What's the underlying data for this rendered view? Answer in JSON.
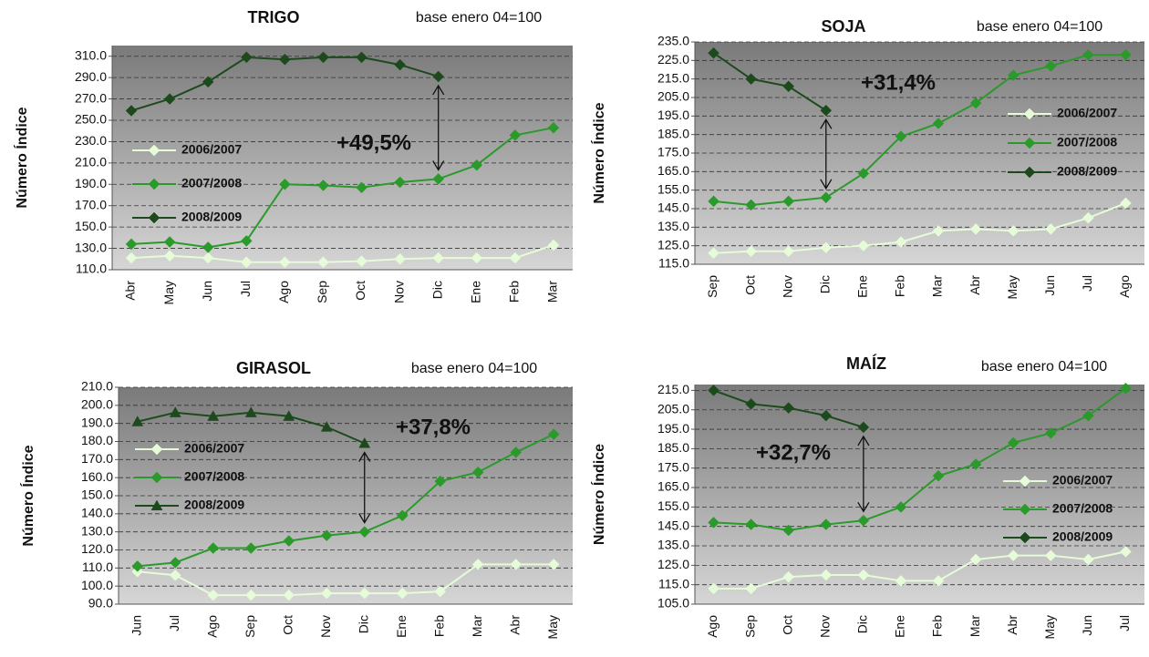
{
  "chart_data": [
    {
      "type": "line",
      "title": "TRIGO",
      "note": "base enero 04=100",
      "ylabel": "Número Índice",
      "annotation": "+49,5%",
      "categories": [
        "Abr",
        "May",
        "Jun",
        "Jul",
        "Ago",
        "Sep",
        "Oct",
        "Nov",
        "Dic",
        "Ene",
        "Feb",
        "Mar"
      ],
      "series": [
        {
          "name": "2006/2007",
          "color": "#e6fbd8",
          "marker": "diamond",
          "values": [
            121,
            123,
            121,
            117,
            117,
            117,
            118,
            120,
            121,
            121,
            121,
            133
          ]
        },
        {
          "name": "2007/2008",
          "color": "#2a9a2a",
          "marker": "diamond",
          "values": [
            134,
            136,
            131,
            137,
            190,
            189,
            187,
            192,
            195,
            208,
            236,
            243
          ]
        },
        {
          "name": "2008/2009",
          "color": "#1d4a1d",
          "marker": "diamond",
          "values": [
            259,
            270,
            286,
            309,
            307,
            309,
            309,
            302,
            291,
            null,
            null,
            null
          ]
        }
      ],
      "ylim": [
        110,
        320
      ],
      "yticks": [
        {
          "value": 110,
          "label": "110.0"
        },
        {
          "value": 130,
          "label": "130.0"
        },
        {
          "value": 150,
          "label": "150.0"
        },
        {
          "value": 170,
          "label": "170.0"
        },
        {
          "value": 190,
          "label": "190.0"
        },
        {
          "value": 210,
          "label": "210.0"
        },
        {
          "value": 230,
          "label": "230.0"
        },
        {
          "value": 250,
          "label": "250.0"
        },
        {
          "value": 270,
          "label": "270.0"
        },
        {
          "value": 290,
          "label": "290.0"
        },
        {
          "value": 310,
          "label": "310.0"
        }
      ],
      "grid": true
    },
    {
      "type": "line",
      "title": "SOJA",
      "note": "base enero 04=100",
      "ylabel": "Número Índice",
      "annotation": "+31,4%",
      "categories": [
        "Sep",
        "Oct",
        "Nov",
        "Dic",
        "Ene",
        "Feb",
        "Mar",
        "Abr",
        "May",
        "Jun",
        "Jul",
        "Ago"
      ],
      "series": [
        {
          "name": "2006/2007",
          "color": "#e6fbd8",
          "marker": "diamond",
          "values": [
            121,
            122,
            122,
            124,
            125,
            127,
            133,
            134,
            133,
            134,
            140,
            148
          ]
        },
        {
          "name": "2007/2008",
          "color": "#2a9a2a",
          "marker": "diamond",
          "values": [
            149,
            147,
            149,
            151,
            164,
            184,
            191,
            202,
            217,
            222,
            228,
            228
          ]
        },
        {
          "name": "2008/2009",
          "color": "#1d4a1d",
          "marker": "diamond",
          "values": [
            229,
            215,
            211,
            198,
            null,
            null,
            null,
            null,
            null,
            null,
            null,
            null
          ]
        }
      ],
      "ylim": [
        115,
        235
      ],
      "yticks": [
        {
          "value": 115,
          "label": "115.0"
        },
        {
          "value": 125,
          "label": "125.0"
        },
        {
          "value": 135,
          "label": "135.0"
        },
        {
          "value": 145,
          "label": "145.0"
        },
        {
          "value": 155,
          "label": "155.0"
        },
        {
          "value": 165,
          "label": "165.0"
        },
        {
          "value": 175,
          "label": "175.0"
        },
        {
          "value": 185,
          "label": "185.0"
        },
        {
          "value": 195,
          "label": "195.0"
        },
        {
          "value": 205,
          "label": "205.0"
        },
        {
          "value": 215,
          "label": "215.0"
        },
        {
          "value": 225,
          "label": "225.0"
        },
        {
          "value": 235,
          "label": "235.0"
        }
      ],
      "grid": true
    },
    {
      "type": "line",
      "title": "GIRASOL",
      "note": "base enero 04=100",
      "ylabel": "Número Índice",
      "annotation": "+37,8%",
      "categories": [
        "Jun",
        "Jul",
        "Ago",
        "Sep",
        "Oct",
        "Nov",
        "Dic",
        "Ene",
        "Feb",
        "Mar",
        "Abr",
        "May"
      ],
      "series": [
        {
          "name": "2006/2007",
          "color": "#e6fbd8",
          "marker": "diamond",
          "values": [
            108,
            106,
            95,
            95,
            95,
            96,
            96,
            96,
            97,
            112,
            112,
            112
          ]
        },
        {
          "name": "2007/2008",
          "color": "#2a9a2a",
          "marker": "diamond",
          "values": [
            111,
            113,
            121,
            121,
            125,
            128,
            130,
            139,
            158,
            163,
            174,
            184
          ]
        },
        {
          "name": "2008/2009",
          "color": "#1d4a1d",
          "marker": "triangle",
          "values": [
            191,
            196,
            194,
            196,
            194,
            188,
            179,
            null,
            null,
            null,
            null,
            null
          ]
        }
      ],
      "ylim": [
        90,
        210
      ],
      "yticks": [
        {
          "value": 90,
          "label": "90.0"
        },
        {
          "value": 100,
          "label": "100.0"
        },
        {
          "value": 110,
          "label": "110.0"
        },
        {
          "value": 120,
          "label": "120.0"
        },
        {
          "value": 130,
          "label": "130.0"
        },
        {
          "value": 140,
          "label": "140.0"
        },
        {
          "value": 150,
          "label": "150.0"
        },
        {
          "value": 160,
          "label": "160.0"
        },
        {
          "value": 170,
          "label": "170.0"
        },
        {
          "value": 180,
          "label": "180.0"
        },
        {
          "value": 190,
          "label": "190.0"
        },
        {
          "value": 200,
          "label": "200.0"
        },
        {
          "value": 210,
          "label": "210.0"
        }
      ],
      "grid": true
    },
    {
      "type": "line",
      "title": "MAÍZ",
      "note": "base enero 04=100",
      "ylabel": "Número Índice",
      "annotation": "+32,7%",
      "categories": [
        "Ago",
        "Sep",
        "Oct",
        "Nov",
        "Dic",
        "Ene",
        "Feb",
        "Mar",
        "Abr",
        "May",
        "Jun",
        "Jul"
      ],
      "series": [
        {
          "name": "2006/2007",
          "color": "#e6fbd8",
          "marker": "diamond",
          "values": [
            113,
            113,
            119,
            120,
            120,
            117,
            117,
            128,
            130,
            130,
            128,
            132
          ]
        },
        {
          "name": "2007/2008",
          "color": "#2a9a2a",
          "marker": "diamond",
          "values": [
            147,
            146,
            143,
            146,
            148,
            155,
            171,
            177,
            188,
            193,
            202,
            216
          ]
        },
        {
          "name": "2008/2009",
          "color": "#1d4a1d",
          "marker": "diamond",
          "values": [
            215,
            208,
            206,
            202,
            196,
            null,
            null,
            null,
            null,
            null,
            null,
            null
          ]
        }
      ],
      "ylim": [
        105,
        218
      ],
      "yticks": [
        {
          "value": 105,
          "label": "105.0"
        },
        {
          "value": 115,
          "label": "115.0"
        },
        {
          "value": 125,
          "label": "125.0"
        },
        {
          "value": 135,
          "label": "135.0"
        },
        {
          "value": 145,
          "label": "145.0"
        },
        {
          "value": 155,
          "label": "155.0"
        },
        {
          "value": 165,
          "label": "165.0"
        },
        {
          "value": 175,
          "label": "175.0"
        },
        {
          "value": 185,
          "label": "185.0"
        },
        {
          "value": 195,
          "label": "195.0"
        },
        {
          "value": 205,
          "label": "205.0"
        },
        {
          "value": 215,
          "label": "215.0"
        }
      ],
      "grid": true
    }
  ]
}
